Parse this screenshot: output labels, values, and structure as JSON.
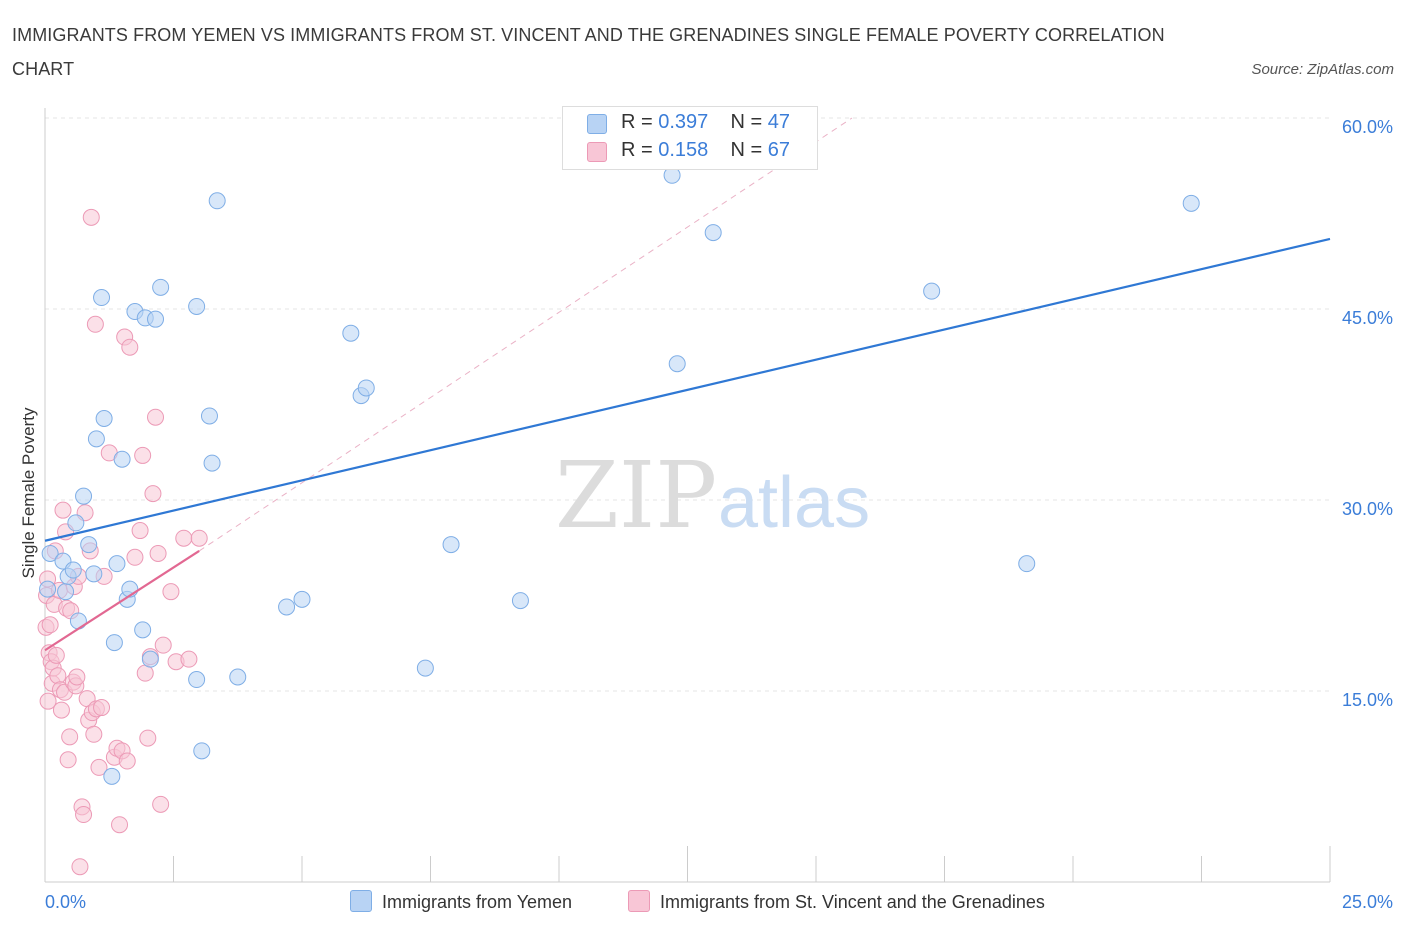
{
  "title": "IMMIGRANTS FROM YEMEN VS IMMIGRANTS FROM ST. VINCENT AND THE GRENADINES SINGLE FEMALE POVERTY CORRELATION CHART",
  "source": "Source: ZipAtlas.com",
  "watermark": {
    "zip": "ZIP",
    "atlas": "atlas"
  },
  "legend_top": {
    "rows": [
      {
        "r_label": "R = ",
        "r_value": "0.397",
        "n_label": "N = ",
        "n_value": "47"
      },
      {
        "r_label": "R = ",
        "r_value": "0.158",
        "n_label": "N = ",
        "n_value": "67"
      }
    ]
  },
  "legend_bottom": [
    {
      "label": "Immigrants from Yemen"
    },
    {
      "label": "Immigrants from St. Vincent and the Grenadines"
    }
  ],
  "colors": {
    "blue_fill": "#b8d3f4",
    "blue_stroke": "#7faee6",
    "blue_line": "#2f78d4",
    "pink_fill": "#f8c6d6",
    "pink_stroke": "#ec9ab6",
    "pink_line": "#e26892",
    "axis_text": "#3b7dd8",
    "grid": "#e4e4e4"
  },
  "chart_data": {
    "type": "scatter",
    "xlabel": "",
    "ylabel": "Single Female Poverty",
    "xlim": [
      0,
      25
    ],
    "ylim": [
      0,
      60
    ],
    "x_tick_labels": [
      "0.0%",
      "25.0%"
    ],
    "y_tick_labels": [
      "15.0%",
      "30.0%",
      "45.0%",
      "60.0%"
    ],
    "y_ticks": [
      15,
      30,
      45,
      60
    ],
    "grid": true,
    "series": [
      {
        "name": "Immigrants from Yemen",
        "color": "blue",
        "points": [
          [
            0.05,
            23.0
          ],
          [
            0.1,
            25.8
          ],
          [
            0.35,
            25.2
          ],
          [
            0.4,
            22.8
          ],
          [
            0.45,
            24.0
          ],
          [
            0.55,
            24.5
          ],
          [
            0.6,
            28.2
          ],
          [
            0.65,
            20.5
          ],
          [
            0.75,
            30.3
          ],
          [
            0.85,
            26.5
          ],
          [
            0.95,
            24.2
          ],
          [
            1.0,
            34.8
          ],
          [
            1.1,
            45.9
          ],
          [
            1.15,
            36.4
          ],
          [
            1.3,
            8.3
          ],
          [
            1.35,
            18.8
          ],
          [
            1.4,
            25.0
          ],
          [
            1.5,
            33.2
          ],
          [
            1.6,
            22.2
          ],
          [
            1.65,
            23.0
          ],
          [
            1.75,
            44.8
          ],
          [
            1.9,
            19.8
          ],
          [
            1.95,
            44.3
          ],
          [
            2.05,
            17.5
          ],
          [
            2.15,
            44.2
          ],
          [
            2.25,
            46.7
          ],
          [
            2.95,
            15.9
          ],
          [
            2.95,
            45.2
          ],
          [
            3.05,
            10.3
          ],
          [
            3.2,
            36.6
          ],
          [
            3.25,
            32.9
          ],
          [
            3.35,
            53.5
          ],
          [
            3.75,
            16.1
          ],
          [
            4.7,
            21.6
          ],
          [
            5.0,
            22.2
          ],
          [
            5.95,
            43.1
          ],
          [
            6.15,
            38.2
          ],
          [
            6.25,
            38.8
          ],
          [
            7.4,
            16.8
          ],
          [
            7.9,
            26.5
          ],
          [
            9.25,
            22.1
          ],
          [
            12.2,
            55.5
          ],
          [
            12.3,
            40.7
          ],
          [
            13.0,
            51.0
          ],
          [
            17.25,
            46.4
          ],
          [
            19.1,
            25.0
          ],
          [
            22.3,
            53.3
          ]
        ],
        "trend": [
          [
            0,
            26.8
          ],
          [
            25,
            50.5
          ]
        ]
      },
      {
        "name": "Immigrants from St. Vincent and the Grenadines",
        "color": "pink",
        "points": [
          [
            0.02,
            20.0
          ],
          [
            0.03,
            22.5
          ],
          [
            0.05,
            23.8
          ],
          [
            0.06,
            14.2
          ],
          [
            0.08,
            18.0
          ],
          [
            0.1,
            20.2
          ],
          [
            0.12,
            17.3
          ],
          [
            0.14,
            15.6
          ],
          [
            0.16,
            16.8
          ],
          [
            0.18,
            21.8
          ],
          [
            0.2,
            26.0
          ],
          [
            0.22,
            17.8
          ],
          [
            0.25,
            16.2
          ],
          [
            0.28,
            22.9
          ],
          [
            0.3,
            15.1
          ],
          [
            0.32,
            13.5
          ],
          [
            0.35,
            29.2
          ],
          [
            0.38,
            14.9
          ],
          [
            0.4,
            27.5
          ],
          [
            0.42,
            21.5
          ],
          [
            0.45,
            9.6
          ],
          [
            0.48,
            11.4
          ],
          [
            0.5,
            21.3
          ],
          [
            0.55,
            15.7
          ],
          [
            0.57,
            23.2
          ],
          [
            0.6,
            15.4
          ],
          [
            0.62,
            16.1
          ],
          [
            0.65,
            24.0
          ],
          [
            0.68,
            1.2
          ],
          [
            0.72,
            5.9
          ],
          [
            0.75,
            5.3
          ],
          [
            0.78,
            29.0
          ],
          [
            0.82,
            14.4
          ],
          [
            0.85,
            12.7
          ],
          [
            0.88,
            26.0
          ],
          [
            0.9,
            52.2
          ],
          [
            0.92,
            13.3
          ],
          [
            0.95,
            11.6
          ],
          [
            0.98,
            43.8
          ],
          [
            1.0,
            13.6
          ],
          [
            1.05,
            9.0
          ],
          [
            1.1,
            13.7
          ],
          [
            1.15,
            24.0
          ],
          [
            1.25,
            33.7
          ],
          [
            1.35,
            9.8
          ],
          [
            1.4,
            10.5
          ],
          [
            1.45,
            4.5
          ],
          [
            1.5,
            10.3
          ],
          [
            1.55,
            42.8
          ],
          [
            1.6,
            9.5
          ],
          [
            1.65,
            42.0
          ],
          [
            1.75,
            25.5
          ],
          [
            1.85,
            27.6
          ],
          [
            1.9,
            33.5
          ],
          [
            1.95,
            16.4
          ],
          [
            2.0,
            11.3
          ],
          [
            2.05,
            17.7
          ],
          [
            2.1,
            30.5
          ],
          [
            2.15,
            36.5
          ],
          [
            2.2,
            25.8
          ],
          [
            2.25,
            6.1
          ],
          [
            2.3,
            18.6
          ],
          [
            2.45,
            22.8
          ],
          [
            2.55,
            17.3
          ],
          [
            2.7,
            27.0
          ],
          [
            2.8,
            17.5
          ],
          [
            3.0,
            27.0
          ]
        ],
        "trend": [
          [
            0,
            18.2
          ],
          [
            3.0,
            26.0
          ]
        ],
        "trend_extension": [
          [
            3.0,
            26.0
          ],
          [
            15.7,
            60.0
          ]
        ]
      }
    ]
  }
}
